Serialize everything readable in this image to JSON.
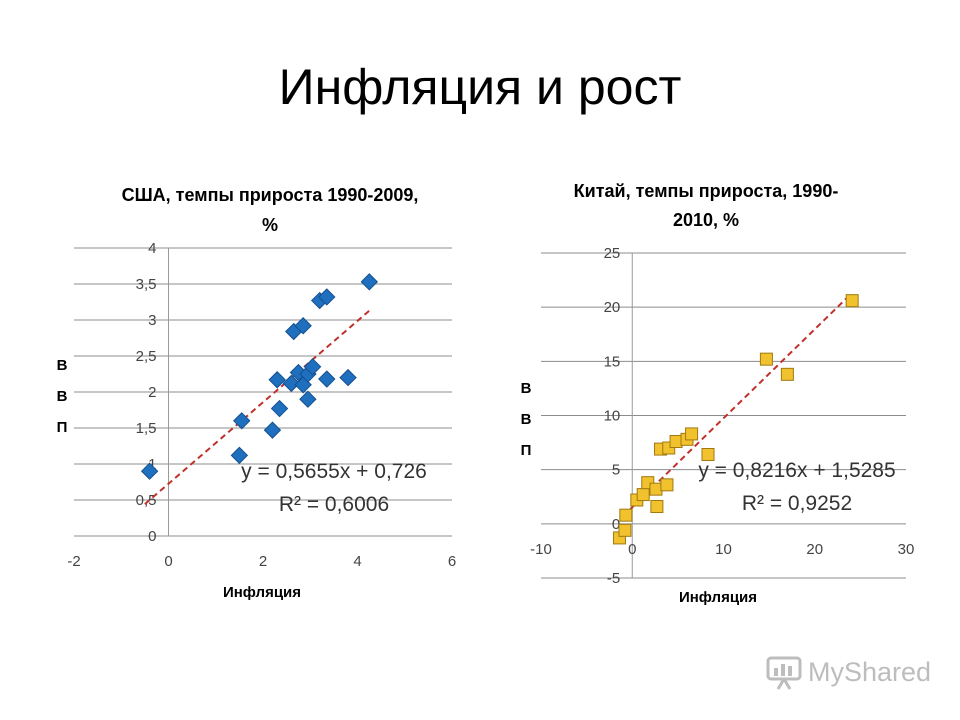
{
  "slide_title": "Инфляция и рост",
  "watermark": {
    "text": "MyShared",
    "icon": "presentation-board-icon",
    "color": "#bdbdbd"
  },
  "chart_data": [
    {
      "type": "scatter",
      "title_lines": [
        "США, темпы прироста 1990-2009,",
        "%"
      ],
      "xlabel": "Инфляция",
      "ylabel_letters": [
        "В",
        "В",
        "П"
      ],
      "xlim": [
        -2,
        6
      ],
      "ylim": [
        0,
        4
      ],
      "x_ticks": [
        -2,
        0,
        2,
        4,
        6
      ],
      "x_tick_labels": [
        "-2",
        "0",
        "2",
        "4",
        "6"
      ],
      "y_ticks": [
        0,
        0.5,
        1,
        1.5,
        2,
        2.5,
        3,
        3.5,
        4
      ],
      "y_tick_labels": [
        "0",
        "0,5",
        "1",
        "1,5",
        "2",
        "2,5",
        "3",
        "3,5",
        "4"
      ],
      "grid": "horizontal",
      "marker": "diamond",
      "marker_color": "#1f6fbf",
      "trend_color": "#c0312b",
      "points": [
        [
          -0.4,
          0.9
        ],
        [
          1.5,
          1.12
        ],
        [
          1.55,
          1.6
        ],
        [
          2.2,
          1.47
        ],
        [
          2.3,
          2.17
        ],
        [
          2.35,
          1.77
        ],
        [
          2.6,
          2.12
        ],
        [
          2.65,
          2.84
        ],
        [
          2.75,
          2.27
        ],
        [
          2.85,
          2.92
        ],
        [
          2.85,
          2.1
        ],
        [
          2.95,
          1.9
        ],
        [
          2.95,
          2.25
        ],
        [
          3.05,
          2.35
        ],
        [
          3.2,
          3.27
        ],
        [
          3.35,
          3.32
        ],
        [
          3.35,
          2.18
        ],
        [
          3.8,
          2.2
        ],
        [
          4.25,
          3.53
        ]
      ],
      "trend": {
        "slope": 0.5655,
        "intercept": 0.726,
        "x_range": [
          -0.5,
          4.25
        ]
      },
      "equation": "y = 0,5655x + 0,726",
      "r2": "R² = 0,6006"
    },
    {
      "type": "scatter",
      "title_lines": [
        "Китай, темпы прироста, 1990-",
        "2010, %"
      ],
      "xlabel": "Инфляция",
      "ylabel_letters": [
        "В",
        "В",
        "П"
      ],
      "xlim": [
        -10,
        30
      ],
      "ylim": [
        -5,
        25
      ],
      "x_ticks": [
        -10,
        0,
        10,
        20,
        30
      ],
      "x_tick_labels": [
        "-10",
        "0",
        "10",
        "20",
        "30"
      ],
      "y_ticks": [
        -5,
        0,
        5,
        10,
        15,
        20,
        25
      ],
      "y_tick_labels": [
        "-5",
        "0",
        "5",
        "10",
        "15",
        "20",
        "25"
      ],
      "grid": "horizontal",
      "marker": "square",
      "marker_color": "#f2c12e",
      "marker_stroke": "#a07a10",
      "trend_color": "#c0312b",
      "points": [
        [
          -1.4,
          -1.3
        ],
        [
          -0.8,
          -0.6
        ],
        [
          -0.7,
          0.8
        ],
        [
          0.5,
          2.2
        ],
        [
          1.2,
          2.7
        ],
        [
          1.7,
          3.8
        ],
        [
          2.6,
          3.2
        ],
        [
          2.7,
          1.6
        ],
        [
          3.1,
          6.9
        ],
        [
          3.8,
          3.6
        ],
        [
          4.0,
          7.0
        ],
        [
          4.8,
          7.6
        ],
        [
          6.0,
          7.8
        ],
        [
          6.5,
          8.3
        ],
        [
          8.3,
          6.4
        ],
        [
          14.7,
          15.2
        ],
        [
          17.0,
          13.8
        ],
        [
          24.1,
          20.6
        ]
      ],
      "trend": {
        "slope": 0.8216,
        "intercept": 1.5285,
        "x_range": [
          -1.0,
          24.0
        ]
      },
      "equation": "y = 0,8216x + 1,5285",
      "r2": "R² = 0,9252"
    }
  ]
}
